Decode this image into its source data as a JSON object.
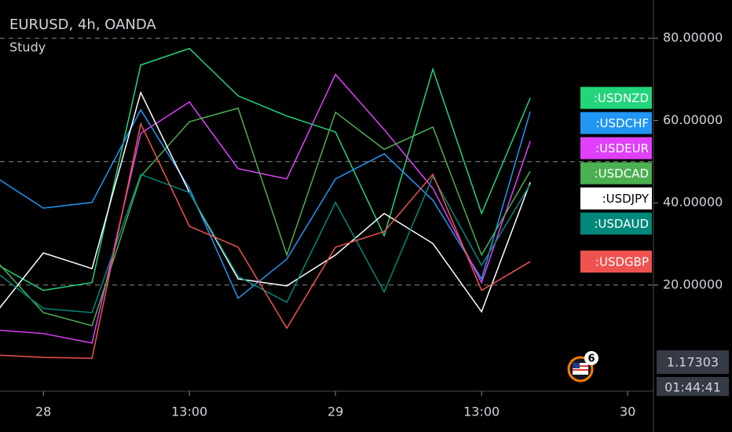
{
  "chart_data": {
    "type": "line",
    "title": "EURUSD, 4h, OANDA",
    "subtitle": "Study",
    "x": [
      0,
      1,
      2,
      3,
      4,
      5,
      6,
      7,
      8,
      9,
      10,
      11
    ],
    "xlim": [
      0.11,
      13.53
    ],
    "xticks": [
      {
        "value": 1,
        "label": "28"
      },
      {
        "value": 4,
        "label": "13:00"
      },
      {
        "value": 7,
        "label": "29"
      },
      {
        "value": 10,
        "label": "13:00"
      },
      {
        "value": 13,
        "label": "30"
      }
    ],
    "ylim": [
      -5.8,
      89.3
    ],
    "yticks": [
      {
        "value": 80,
        "label": "80.00000"
      },
      {
        "value": 60,
        "label": "60.00000"
      },
      {
        "value": 40,
        "label": "40.00000"
      },
      {
        "value": 20,
        "label": "20.00000"
      }
    ],
    "levels": [
      80,
      50,
      20
    ],
    "series": [
      {
        "name": ":USDNZD",
        "color": "#22d47a",
        "values": [
          25.3,
          18.7,
          20.6,
          73.5,
          77.5,
          66.0,
          61.1,
          57.2,
          32.0,
          72.5,
          37.4,
          65.5
        ]
      },
      {
        "name": ":USDCHF",
        "color": "#2196f3",
        "values": [
          46.4,
          38.7,
          40.1,
          62.6,
          43.5,
          16.8,
          26.3,
          45.8,
          51.9,
          40.6,
          21.5,
          62.2
        ]
      },
      {
        "name": ":USDEUR",
        "color": "#e040fb",
        "values": [
          9.1,
          8.2,
          5.9,
          56.9,
          64.5,
          48.3,
          45.8,
          71.2,
          57.8,
          43.5,
          20.6,
          55.0
        ]
      },
      {
        "name": ":USDCAD",
        "color": "#4caf50",
        "values": [
          26.3,
          13.3,
          10.1,
          46.4,
          59.7,
          63.0,
          27.3,
          62.0,
          53.0,
          58.4,
          27.3,
          47.7
        ]
      },
      {
        "name": ":USDJPY",
        "color": "#ffffff",
        "values": [
          12.9,
          27.8,
          24.0,
          66.8,
          42.5,
          21.5,
          19.8,
          27.3,
          37.4,
          30.1,
          13.5,
          45.0
        ]
      },
      {
        "name": ":USDAUD",
        "color": "#00897b",
        "values": [
          23.4,
          14.3,
          13.3,
          46.9,
          42.5,
          22.1,
          15.8,
          40.1,
          18.3,
          46.4,
          24.8,
          44.5
        ]
      },
      {
        "name": ":USDGBP",
        "color": "#ef5350",
        "values": [
          3.0,
          2.4,
          2.2,
          59.2,
          34.3,
          29.2,
          9.5,
          29.2,
          33.0,
          46.9,
          18.7,
          25.7
        ]
      }
    ],
    "last_price": "1.17303",
    "countdown": "01:44:41",
    "event_count": 6
  }
}
